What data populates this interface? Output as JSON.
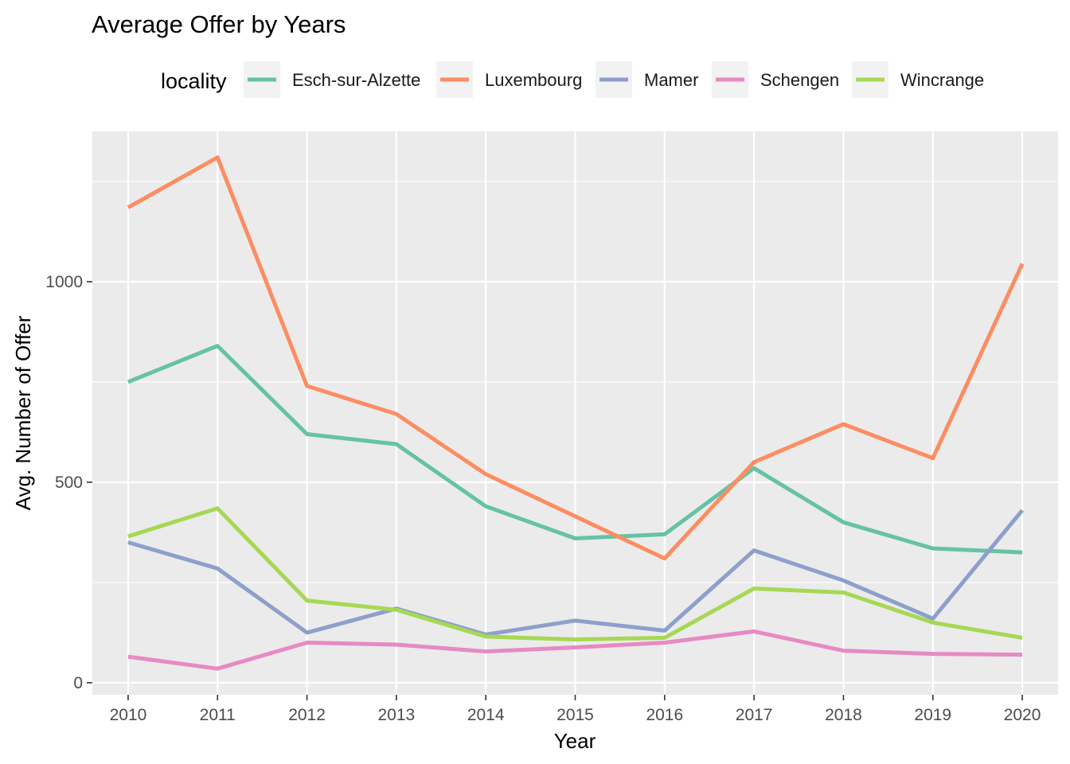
{
  "chart_data": {
    "type": "line",
    "title": "Average Offer by Years",
    "xlabel": "Year",
    "ylabel": "Avg. Number of Offer",
    "legend_title": "locality",
    "legend_position": "top",
    "grid": true,
    "x": [
      "2010",
      "2011",
      "2012",
      "2013",
      "2014",
      "2015",
      "2016",
      "2017",
      "2018",
      "2019",
      "2020"
    ],
    "xlim": [
      2009.6,
      2020.4
    ],
    "ylim": [
      -30,
      1375
    ],
    "yticks": [
      0,
      500,
      1000
    ],
    "series": [
      {
        "name": "Esch-sur-Alzette",
        "color": "#66c2a5",
        "values": [
          750,
          840,
          620,
          595,
          440,
          360,
          370,
          535,
          400,
          335,
          325
        ]
      },
      {
        "name": "Luxembourg",
        "color": "#fc8d62",
        "values": [
          1185,
          1310,
          740,
          670,
          520,
          415,
          310,
          550,
          645,
          560,
          1045
        ]
      },
      {
        "name": "Mamer",
        "color": "#8da0cb",
        "values": [
          350,
          285,
          125,
          185,
          120,
          155,
          130,
          330,
          255,
          160,
          430
        ]
      },
      {
        "name": "Schengen",
        "color": "#e78ac3",
        "values": [
          65,
          35,
          100,
          95,
          78,
          88,
          100,
          128,
          80,
          72,
          70
        ]
      },
      {
        "name": "Wincrange",
        "color": "#a6d854",
        "values": [
          365,
          435,
          205,
          182,
          115,
          108,
          112,
          235,
          225,
          150,
          112
        ]
      }
    ]
  }
}
